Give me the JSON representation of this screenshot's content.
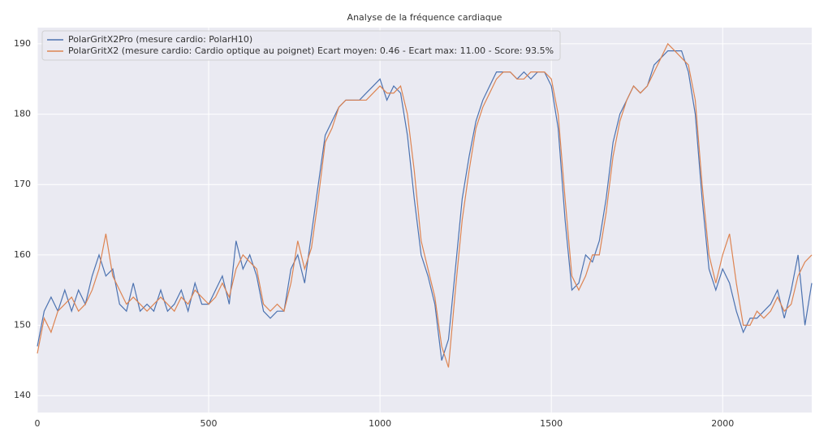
{
  "chart_data": {
    "type": "line",
    "title": "Analyse de la fréquence cardiaque",
    "x": [
      0,
      20,
      40,
      60,
      80,
      100,
      120,
      140,
      160,
      180,
      200,
      220,
      240,
      260,
      280,
      300,
      320,
      340,
      360,
      380,
      400,
      420,
      440,
      460,
      480,
      500,
      520,
      540,
      560,
      580,
      600,
      620,
      640,
      660,
      680,
      700,
      720,
      740,
      760,
      780,
      800,
      820,
      840,
      860,
      880,
      900,
      920,
      940,
      960,
      980,
      1000,
      1020,
      1040,
      1060,
      1080,
      1100,
      1120,
      1140,
      1160,
      1180,
      1200,
      1220,
      1240,
      1260,
      1280,
      1300,
      1320,
      1340,
      1360,
      1380,
      1400,
      1420,
      1440,
      1460,
      1480,
      1500,
      1520,
      1540,
      1560,
      1580,
      1600,
      1620,
      1640,
      1660,
      1680,
      1700,
      1720,
      1740,
      1760,
      1780,
      1800,
      1820,
      1840,
      1860,
      1880,
      1900,
      1920,
      1940,
      1960,
      1980,
      2000,
      2020,
      2040,
      2060,
      2080,
      2100,
      2120,
      2140,
      2160,
      2180,
      2200,
      2220,
      2240,
      2260
    ],
    "series": [
      {
        "name": "PolarGritX2Pro (mesure cardio: PolarH10)",
        "color": "#4c72b0",
        "values": [
          147,
          152,
          154,
          152,
          155,
          152,
          155,
          153,
          157,
          160,
          157,
          158,
          153,
          152,
          156,
          152,
          153,
          152,
          155,
          152,
          153,
          155,
          152,
          156,
          153,
          153,
          155,
          157,
          153,
          162,
          158,
          160,
          157,
          152,
          151,
          152,
          152,
          158,
          160,
          156,
          163,
          170,
          177,
          179,
          181,
          182,
          182,
          182,
          183,
          184,
          185,
          182,
          184,
          183,
          177,
          168,
          160,
          157,
          153,
          145,
          148,
          158,
          168,
          174,
          179,
          182,
          184,
          186,
          186,
          186,
          185,
          186,
          185,
          186,
          186,
          184,
          178,
          165,
          155,
          156,
          160,
          159,
          162,
          168,
          176,
          180,
          182,
          184,
          183,
          184,
          187,
          188,
          189,
          189,
          189,
          186,
          180,
          168,
          158,
          155,
          158,
          156,
          152,
          149,
          151,
          151,
          152,
          153,
          155,
          151,
          155,
          160,
          150,
          156
        ]
      },
      {
        "name": "PolarGritX2 (mesure cardio: Cardio optique au poignet) Ecart moyen: 0.46 - Ecart max: 11.00 - Score: 93.5%",
        "color": "#dd8452",
        "values": [
          146,
          151,
          149,
          152,
          153,
          154,
          152,
          153,
          155,
          158,
          163,
          157,
          155,
          153,
          154,
          153,
          152,
          153,
          154,
          153,
          152,
          154,
          153,
          155,
          154,
          153,
          154,
          156,
          154,
          158,
          160,
          159,
          158,
          153,
          152,
          153,
          152,
          156,
          162,
          158,
          161,
          168,
          176,
          178,
          181,
          182,
          182,
          182,
          182,
          183,
          184,
          183,
          183,
          184,
          180,
          172,
          162,
          158,
          154,
          147,
          144,
          155,
          165,
          172,
          178,
          181,
          183,
          185,
          186,
          186,
          185,
          185,
          186,
          186,
          186,
          185,
          180,
          168,
          157,
          155,
          157,
          160,
          160,
          166,
          174,
          179,
          182,
          184,
          183,
          184,
          186,
          188,
          190,
          189,
          188,
          187,
          182,
          170,
          160,
          156,
          160,
          163,
          156,
          150,
          150,
          152,
          151,
          152,
          154,
          152,
          153,
          157,
          159,
          160
        ]
      }
    ],
    "xlim": [
      0,
      2260
    ],
    "ylim": [
      137.6,
      192.3
    ],
    "xticks": [
      0,
      500,
      1000,
      1500,
      2000
    ],
    "yticks": [
      140,
      150,
      160,
      170,
      180,
      190
    ],
    "grid": true,
    "legend": "upper left"
  }
}
